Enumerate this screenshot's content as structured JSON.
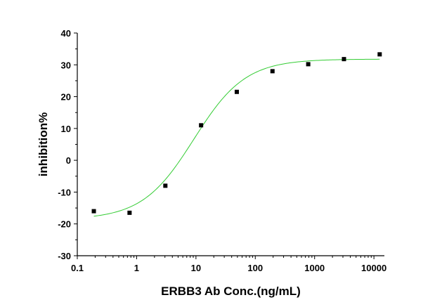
{
  "chart_data": {
    "type": "scatter",
    "title": "",
    "xlabel": "ERBB3 Ab Conc.(ng/mL)",
    "ylabel": "inhibition%",
    "xscale": "log",
    "xlim": [
      0.1,
      15000
    ],
    "ylim": [
      -30,
      40
    ],
    "x_ticks": [
      0.1,
      1,
      10,
      100,
      1000,
      10000
    ],
    "x_tick_labels": [
      "0.1",
      "1",
      "10",
      "100",
      "1000",
      "10000"
    ],
    "y_ticks": [
      -30,
      -20,
      -10,
      0,
      10,
      20,
      30,
      40
    ],
    "y_tick_labels": [
      "-30",
      "-20",
      "-10",
      "0",
      "10",
      "20",
      "30",
      "40"
    ],
    "grid": false,
    "legend": "none",
    "series": [
      {
        "type": "scatter",
        "marker": "square",
        "color": "#000000",
        "x": [
          0.19,
          0.76,
          3.05,
          12.2,
          48.8,
          195,
          781,
          3125,
          12500
        ],
        "y": [
          -16.0,
          -16.5,
          -8.0,
          11.0,
          21.5,
          28.0,
          30.2,
          31.8,
          33.3
        ]
      },
      {
        "type": "line",
        "fit": "4PL",
        "color": "#33cc33",
        "bottom": -18.6,
        "top": 31.8,
        "ec50": 9.2,
        "hill": 1.0,
        "x_range": [
          0.19,
          12500
        ]
      }
    ]
  }
}
